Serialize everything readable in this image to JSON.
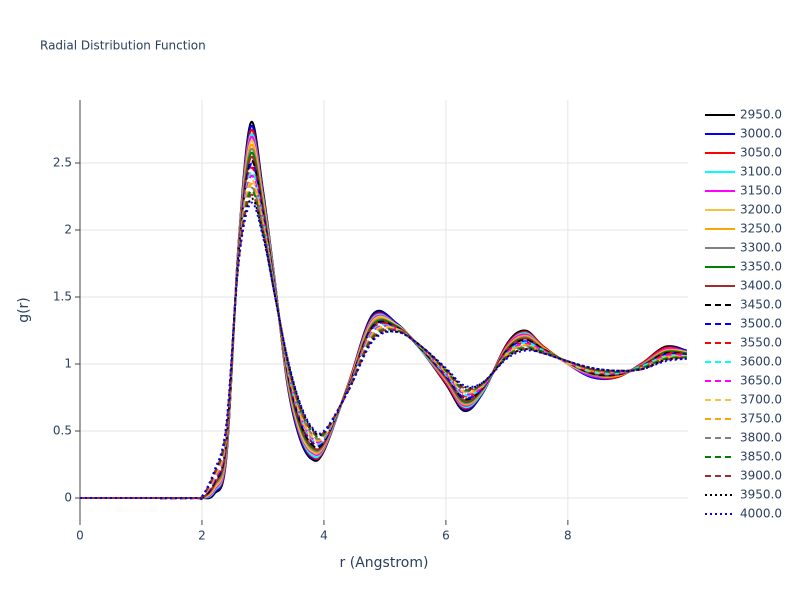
{
  "chart_data": {
    "type": "line",
    "title": "Radial Distribution Function",
    "x_label": "r (Angstrom)",
    "y_label": "g(r)",
    "x": [
      0,
      1,
      1.9,
      2.0,
      2.2,
      2.4,
      2.6,
      2.8,
      3.0,
      3.2,
      3.4,
      3.6,
      3.8,
      4.0,
      4.4,
      4.8,
      5.2,
      5.6,
      6.0,
      6.3,
      6.6,
      7.0,
      7.3,
      7.6,
      8.0,
      8.4,
      8.8,
      9.2,
      9.6,
      9.95
    ],
    "xlim": [
      0,
      9.97
    ],
    "ylim": [
      -0.164,
      2.97
    ],
    "xticks": [
      0,
      2,
      4,
      6,
      8
    ],
    "yticks": [
      0,
      0.5,
      1,
      1.5,
      2,
      2.5
    ],
    "grid": true,
    "legend": "right",
    "series": [
      {
        "name": "2950.0",
        "color": "#000000",
        "dash": "solid",
        "values": [
          0,
          0,
          0,
          0,
          0.03,
          0.3,
          1.9,
          2.8,
          2.3,
          1.6,
          0.85,
          0.45,
          0.29,
          0.35,
          0.85,
          1.37,
          1.3,
          1.1,
          0.85,
          0.65,
          0.78,
          1.15,
          1.25,
          1.13,
          1.0,
          0.9,
          0.9,
          1.0,
          1.13,
          1.1
        ]
      },
      {
        "name": "3000.0",
        "color": "#0000ff",
        "dash": "solid",
        "values": [
          0,
          0,
          0,
          0,
          0.04,
          0.31,
          1.89,
          2.77,
          2.28,
          1.6,
          0.86,
          0.46,
          0.3,
          0.36,
          0.85,
          1.36,
          1.3,
          1.1,
          0.86,
          0.66,
          0.78,
          1.14,
          1.24,
          1.13,
          1.0,
          0.9,
          0.9,
          1.0,
          1.12,
          1.1
        ]
      },
      {
        "name": "3050.0",
        "color": "#ff0000",
        "dash": "solid",
        "values": [
          0,
          0,
          0,
          0,
          0.05,
          0.32,
          1.89,
          2.74,
          2.27,
          1.59,
          0.87,
          0.48,
          0.31,
          0.36,
          0.85,
          1.35,
          1.29,
          1.1,
          0.86,
          0.67,
          0.79,
          1.14,
          1.24,
          1.13,
          1.0,
          0.91,
          0.9,
          1.0,
          1.12,
          1.09
        ]
      },
      {
        "name": "3100.0",
        "color": "#00ffff",
        "dash": "solid",
        "values": [
          0,
          0,
          0,
          0,
          0.05,
          0.34,
          1.88,
          2.71,
          2.25,
          1.59,
          0.88,
          0.49,
          0.32,
          0.37,
          0.84,
          1.34,
          1.29,
          1.1,
          0.87,
          0.68,
          0.79,
          1.13,
          1.23,
          1.12,
          1.0,
          0.91,
          0.91,
          0.99,
          1.11,
          1.09
        ]
      },
      {
        "name": "3150.0",
        "color": "#ff00ff",
        "dash": "solid",
        "values": [
          0,
          0,
          0,
          0,
          0.06,
          0.35,
          1.87,
          2.69,
          2.23,
          1.58,
          0.89,
          0.5,
          0.34,
          0.38,
          0.84,
          1.33,
          1.29,
          1.11,
          0.87,
          0.69,
          0.8,
          1.13,
          1.22,
          1.12,
          1.0,
          0.91,
          0.91,
          0.99,
          1.11,
          1.09
        ]
      },
      {
        "name": "3200.0",
        "color": "#f5c242",
        "dash": "solid",
        "values": [
          0,
          0,
          0,
          0,
          0.07,
          0.36,
          1.86,
          2.66,
          2.22,
          1.58,
          0.9,
          0.51,
          0.35,
          0.39,
          0.84,
          1.32,
          1.29,
          1.11,
          0.88,
          0.7,
          0.8,
          1.12,
          1.21,
          1.12,
          1.0,
          0.92,
          0.91,
          0.99,
          1.1,
          1.09
        ]
      },
      {
        "name": "3250.0",
        "color": "#ffa500",
        "dash": "solid",
        "values": [
          0,
          0,
          0,
          0,
          0.08,
          0.37,
          1.86,
          2.63,
          2.2,
          1.57,
          0.91,
          0.53,
          0.36,
          0.39,
          0.84,
          1.31,
          1.28,
          1.11,
          0.88,
          0.7,
          0.8,
          1.12,
          1.21,
          1.12,
          1.01,
          0.92,
          0.91,
          0.99,
          1.1,
          1.08
        ]
      },
      {
        "name": "3300.0",
        "color": "#808080",
        "dash": "solid",
        "values": [
          0,
          0,
          0,
          0,
          0.09,
          0.38,
          1.85,
          2.6,
          2.18,
          1.57,
          0.92,
          0.54,
          0.37,
          0.4,
          0.83,
          1.3,
          1.28,
          1.11,
          0.89,
          0.71,
          0.81,
          1.11,
          1.2,
          1.11,
          1.01,
          0.92,
          0.92,
          0.99,
          1.09,
          1.08
        ]
      },
      {
        "name": "3350.0",
        "color": "#008000",
        "dash": "solid",
        "values": [
          0,
          0,
          0,
          0,
          0.1,
          0.4,
          1.84,
          2.57,
          2.17,
          1.56,
          0.93,
          0.55,
          0.38,
          0.41,
          0.83,
          1.29,
          1.28,
          1.11,
          0.9,
          0.72,
          0.81,
          1.11,
          1.19,
          1.11,
          1.01,
          0.93,
          0.92,
          0.98,
          1.09,
          1.08
        ]
      },
      {
        "name": "3400.0",
        "color": "#a52a2a",
        "dash": "solid",
        "values": [
          0,
          0,
          0,
          0,
          0.1,
          0.41,
          1.84,
          2.54,
          2.15,
          1.56,
          0.94,
          0.57,
          0.39,
          0.41,
          0.83,
          1.28,
          1.27,
          1.11,
          0.9,
          0.73,
          0.81,
          1.1,
          1.19,
          1.11,
          1.01,
          0.93,
          0.92,
          0.98,
          1.08,
          1.07
        ]
      },
      {
        "name": "3450.0",
        "color": "#000000",
        "dash": "dash",
        "values": [
          0,
          0,
          0,
          0,
          0.11,
          0.42,
          1.83,
          2.51,
          2.13,
          1.55,
          0.95,
          0.58,
          0.4,
          0.42,
          0.83,
          1.28,
          1.27,
          1.11,
          0.91,
          0.74,
          0.82,
          1.1,
          1.18,
          1.11,
          1.01,
          0.93,
          0.92,
          0.98,
          1.08,
          1.07
        ]
      },
      {
        "name": "3500.0",
        "color": "#0000ff",
        "dash": "dash",
        "values": [
          0,
          0,
          0,
          0.01,
          0.12,
          0.43,
          1.82,
          2.49,
          2.12,
          1.55,
          0.96,
          0.59,
          0.42,
          0.43,
          0.82,
          1.27,
          1.27,
          1.12,
          0.91,
          0.75,
          0.82,
          1.09,
          1.17,
          1.1,
          1.01,
          0.94,
          0.93,
          0.98,
          1.07,
          1.07
        ]
      },
      {
        "name": "3550.0",
        "color": "#ff0000",
        "dash": "dash",
        "values": [
          0,
          0,
          0,
          0.01,
          0.13,
          0.44,
          1.81,
          2.46,
          2.1,
          1.54,
          0.96,
          0.6,
          0.43,
          0.44,
          0.82,
          1.26,
          1.27,
          1.12,
          0.92,
          0.76,
          0.83,
          1.09,
          1.16,
          1.1,
          1.01,
          0.94,
          0.93,
          0.98,
          1.07,
          1.07
        ]
      },
      {
        "name": "3600.0",
        "color": "#00ffff",
        "dash": "dash",
        "values": [
          0,
          0,
          0,
          0.01,
          0.14,
          0.46,
          1.81,
          2.43,
          2.08,
          1.54,
          0.97,
          0.62,
          0.44,
          0.44,
          0.82,
          1.25,
          1.26,
          1.12,
          0.92,
          0.77,
          0.83,
          1.08,
          1.16,
          1.1,
          1.01,
          0.94,
          0.93,
          0.98,
          1.06,
          1.06
        ]
      },
      {
        "name": "3650.0",
        "color": "#ff00ff",
        "dash": "dash",
        "values": [
          0,
          0,
          0,
          0.01,
          0.14,
          0.47,
          1.8,
          2.4,
          2.07,
          1.53,
          0.98,
          0.63,
          0.45,
          0.45,
          0.82,
          1.24,
          1.26,
          1.12,
          0.93,
          0.78,
          0.83,
          1.08,
          1.15,
          1.1,
          1.01,
          0.95,
          0.93,
          0.97,
          1.06,
          1.06
        ]
      },
      {
        "name": "3700.0",
        "color": "#f5c242",
        "dash": "dash",
        "values": [
          0,
          0,
          0,
          0.01,
          0.15,
          0.48,
          1.79,
          2.37,
          2.05,
          1.53,
          0.99,
          0.64,
          0.46,
          0.46,
          0.81,
          1.23,
          1.26,
          1.12,
          0.94,
          0.79,
          0.84,
          1.07,
          1.14,
          1.09,
          1.01,
          0.95,
          0.94,
          0.97,
          1.05,
          1.06
        ]
      },
      {
        "name": "3750.0",
        "color": "#ffa500",
        "dash": "dash",
        "values": [
          0,
          0,
          0,
          0.01,
          0.16,
          0.49,
          1.79,
          2.34,
          2.03,
          1.52,
          1.0,
          0.66,
          0.47,
          0.46,
          0.81,
          1.22,
          1.25,
          1.12,
          0.94,
          0.8,
          0.84,
          1.07,
          1.14,
          1.09,
          1.02,
          0.95,
          0.94,
          0.97,
          1.05,
          1.05
        ]
      },
      {
        "name": "3800.0",
        "color": "#808080",
        "dash": "dash",
        "values": [
          0,
          0,
          0,
          0.01,
          0.17,
          0.5,
          1.78,
          2.31,
          2.02,
          1.52,
          1.01,
          0.67,
          0.48,
          0.47,
          0.81,
          1.21,
          1.25,
          1.12,
          0.95,
          0.8,
          0.85,
          1.06,
          1.13,
          1.09,
          1.02,
          0.96,
          0.94,
          0.97,
          1.04,
          1.05
        ]
      },
      {
        "name": "3850.0",
        "color": "#008000",
        "dash": "dash",
        "values": [
          0,
          0,
          0,
          0.01,
          0.18,
          0.51,
          1.77,
          2.29,
          2.0,
          1.51,
          1.02,
          0.68,
          0.5,
          0.48,
          0.81,
          1.2,
          1.25,
          1.13,
          0.95,
          0.81,
          0.85,
          1.06,
          1.12,
          1.09,
          1.02,
          0.96,
          0.94,
          0.97,
          1.04,
          1.05
        ]
      },
      {
        "name": "3900.0",
        "color": "#a52a2a",
        "dash": "dash",
        "values": [
          0,
          0,
          0,
          0.01,
          0.18,
          0.53,
          1.76,
          2.26,
          1.98,
          1.51,
          1.03,
          0.69,
          0.51,
          0.49,
          0.8,
          1.19,
          1.25,
          1.13,
          0.96,
          0.82,
          0.85,
          1.05,
          1.11,
          1.08,
          1.02,
          0.96,
          0.95,
          0.96,
          1.03,
          1.05
        ]
      },
      {
        "name": "3950.0",
        "color": "#000000",
        "dash": "dot",
        "values": [
          0,
          0,
          0,
          0.01,
          0.19,
          0.54,
          1.76,
          2.23,
          1.97,
          1.5,
          1.04,
          0.71,
          0.52,
          0.49,
          0.8,
          1.18,
          1.24,
          1.13,
          0.96,
          0.83,
          0.86,
          1.05,
          1.11,
          1.08,
          1.02,
          0.97,
          0.95,
          0.96,
          1.03,
          1.04
        ]
      },
      {
        "name": "4000.0",
        "color": "#0000ff",
        "dash": "dot",
        "values": [
          0,
          0,
          0,
          0.01,
          0.2,
          0.55,
          1.75,
          2.2,
          1.95,
          1.5,
          1.05,
          0.72,
          0.53,
          0.5,
          0.8,
          1.17,
          1.24,
          1.13,
          0.97,
          0.84,
          0.86,
          1.04,
          1.1,
          1.08,
          1.02,
          0.97,
          0.95,
          0.96,
          1.02,
          1.04
        ]
      }
    ]
  }
}
